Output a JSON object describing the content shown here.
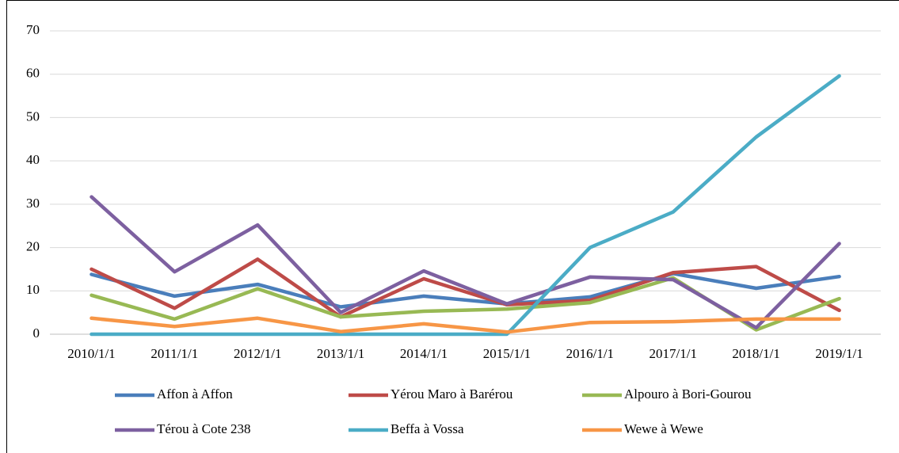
{
  "chart_data": {
    "type": "line",
    "categories": [
      "2010/1/1",
      "2011/1/1",
      "2012/1/1",
      "2013/1/1",
      "2014/1/1",
      "2015/1/1",
      "2016/1/1",
      "2017/1/1",
      "2018/1/1",
      "2019/1/1"
    ],
    "series": [
      {
        "name": "Affon à Affon",
        "color": "#4a7ebb",
        "values": [
          13.8,
          8.8,
          11.5,
          6.3,
          8.8,
          7.0,
          8.6,
          14.0,
          10.6,
          13.3
        ]
      },
      {
        "name": "Yérou Maro à Barérou",
        "color": "#be4b48",
        "values": [
          15.0,
          6.0,
          17.3,
          4.0,
          12.8,
          6.8,
          7.8,
          14.2,
          15.6,
          5.5
        ]
      },
      {
        "name": "Alpouro à Bori-Gourou",
        "color": "#98b954",
        "values": [
          9.0,
          3.5,
          10.5,
          4.0,
          5.3,
          5.8,
          7.3,
          13.0,
          1.0,
          8.2
        ]
      },
      {
        "name": "Térou à Cote 238",
        "color": "#7d60a0",
        "values": [
          31.7,
          14.4,
          25.2,
          5.0,
          14.6,
          7.0,
          13.2,
          12.6,
          1.5,
          20.9
        ]
      },
      {
        "name": "Beffa à Vossa",
        "color": "#4bacc6",
        "values": [
          0,
          0,
          0,
          0,
          0,
          0,
          20.0,
          28.2,
          45.5,
          59.6
        ]
      },
      {
        "name": "Wewe à Wewe",
        "color": "#f79646",
        "values": [
          3.7,
          1.8,
          3.7,
          0.6,
          2.4,
          0.5,
          2.7,
          2.9,
          3.5,
          3.5
        ]
      }
    ],
    "ylim": [
      0,
      70
    ],
    "yticks": [
      0,
      10,
      20,
      30,
      40,
      50,
      60,
      70
    ],
    "grid": true
  }
}
